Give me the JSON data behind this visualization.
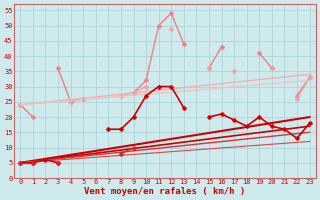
{
  "xlabel": "Vent moyen/en rafales ( km/h )",
  "background_color": "#ceeaed",
  "grid_color": "#b0d8dc",
  "yticks": [
    0,
    5,
    10,
    15,
    20,
    25,
    30,
    35,
    40,
    45,
    50,
    55
  ],
  "xticks": [
    0,
    1,
    2,
    3,
    4,
    5,
    6,
    7,
    8,
    9,
    10,
    11,
    12,
    13,
    14,
    15,
    16,
    17,
    18,
    19,
    20,
    21,
    22,
    23
  ],
  "ylim": [
    0,
    57
  ],
  "xlim": [
    -0.5,
    23.5
  ],
  "series_light1": {
    "y": [
      24,
      20,
      null,
      36,
      25,
      26,
      null,
      null,
      null,
      28,
      32,
      50,
      54,
      44,
      null,
      36,
      43,
      null,
      null,
      41,
      36,
      null,
      27,
      33
    ],
    "color": "#f08080",
    "lw": 1.0,
    "ms": 2.5,
    "marker": "D"
  },
  "series_light2": {
    "y": [
      24,
      null,
      null,
      null,
      25,
      null,
      null,
      null,
      27,
      28,
      30,
      null,
      49,
      null,
      null,
      36,
      null,
      35,
      null,
      null,
      36,
      null,
      26,
      33
    ],
    "color": "#f0a0a0",
    "lw": 1.0,
    "ms": 2.5,
    "marker": "D"
  },
  "series_red1": {
    "y": [
      5,
      5,
      6,
      5,
      null,
      null,
      null,
      16,
      16,
      20,
      27,
      30,
      30,
      23,
      null,
      20,
      21,
      19,
      17,
      20,
      17,
      16,
      13,
      18
    ],
    "color": "#cc0000",
    "lw": 1.2,
    "ms": 2.5,
    "marker": "D"
  },
  "series_red2": {
    "y": [
      5,
      5,
      null,
      5,
      null,
      null,
      null,
      null,
      8,
      10,
      null,
      null,
      null,
      null,
      null,
      null,
      null,
      null,
      null,
      null,
      null,
      null,
      null,
      null
    ],
    "color": "#dd2222",
    "lw": 1.0,
    "ms": 2.5,
    "marker": "D"
  },
  "trend_lines": [
    {
      "x0": 0,
      "y0": 5,
      "x1": 23,
      "y1": 20,
      "color": "#cc0000",
      "lw": 1.5
    },
    {
      "x0": 0,
      "y0": 5,
      "x1": 23,
      "y1": 17,
      "color": "#cc0000",
      "lw": 1.2
    },
    {
      "x0": 0,
      "y0": 5,
      "x1": 23,
      "y1": 15,
      "color": "#dd3333",
      "lw": 1.0
    },
    {
      "x0": 0,
      "y0": 5,
      "x1": 23,
      "y1": 12,
      "color": "#dd4444",
      "lw": 0.8
    },
    {
      "x0": 0,
      "y0": 24,
      "x1": 23,
      "y1": 34,
      "color": "#f0b0b0",
      "lw": 1.0
    },
    {
      "x0": 0,
      "y0": 24,
      "x1": 23,
      "y1": 32,
      "color": "#f0c0c0",
      "lw": 0.9
    }
  ]
}
